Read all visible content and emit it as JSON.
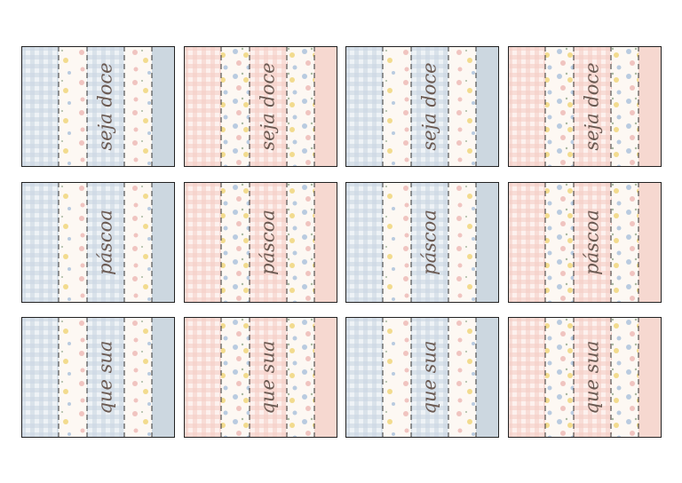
{
  "rows": [
    {
      "cards": [
        {
          "label": "seja doce"
        },
        {
          "label": "seja doce"
        },
        {
          "label": "seja doce"
        },
        {
          "label": "seja doce"
        }
      ]
    },
    {
      "cards": [
        {
          "label": "páscoa"
        },
        {
          "label": "páscoa"
        },
        {
          "label": "páscoa"
        },
        {
          "label": "páscoa"
        }
      ]
    },
    {
      "cards": [
        {
          "label": "que sua"
        },
        {
          "label": "que sua"
        },
        {
          "label": "que sua"
        },
        {
          "label": "que sua"
        }
      ]
    }
  ]
}
